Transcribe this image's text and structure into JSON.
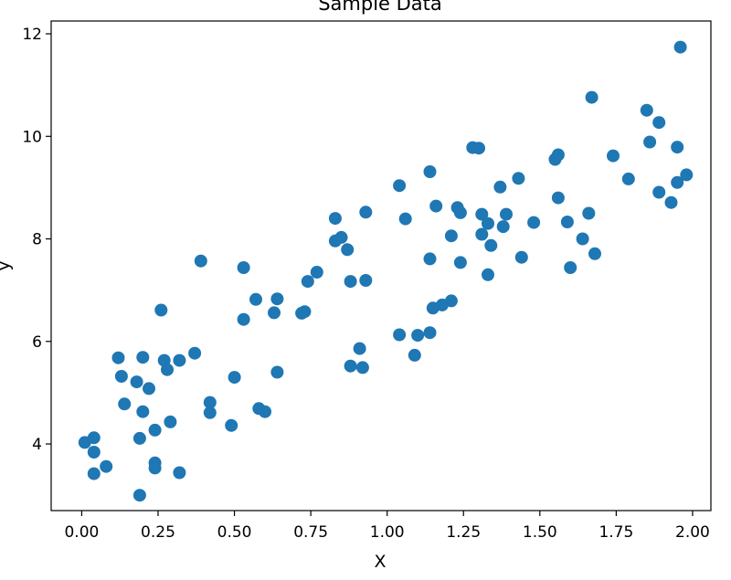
{
  "chart_data": {
    "type": "scatter",
    "title": "Sample Data",
    "xlabel": "X",
    "ylabel": "y",
    "xlim": [
      -0.1,
      2.06
    ],
    "ylim": [
      2.7,
      12.25
    ],
    "xticks": [
      0.0,
      0.25,
      0.5,
      0.75,
      1.0,
      1.25,
      1.5,
      1.75,
      2.0
    ],
    "xtick_labels": [
      "0.00",
      "0.25",
      "0.50",
      "0.75",
      "1.00",
      "1.25",
      "1.50",
      "1.75",
      "2.00"
    ],
    "yticks": [
      4,
      6,
      8,
      10,
      12
    ],
    "ytick_labels": [
      "4",
      "6",
      "8",
      "10",
      "12"
    ],
    "grid": false,
    "marker_color": "#1f77b4",
    "points": [
      [
        0.01,
        4.03
      ],
      [
        0.04,
        4.12
      ],
      [
        0.04,
        3.84
      ],
      [
        0.04,
        3.42
      ],
      [
        0.08,
        3.56
      ],
      [
        0.12,
        5.68
      ],
      [
        0.13,
        5.32
      ],
      [
        0.14,
        4.78
      ],
      [
        0.18,
        5.21
      ],
      [
        0.19,
        3.0
      ],
      [
        0.19,
        4.11
      ],
      [
        0.2,
        5.69
      ],
      [
        0.2,
        4.63
      ],
      [
        0.22,
        5.08
      ],
      [
        0.24,
        4.27
      ],
      [
        0.24,
        3.63
      ],
      [
        0.24,
        3.53
      ],
      [
        0.26,
        6.61
      ],
      [
        0.27,
        5.63
      ],
      [
        0.28,
        5.45
      ],
      [
        0.29,
        4.43
      ],
      [
        0.32,
        5.63
      ],
      [
        0.32,
        3.44
      ],
      [
        0.37,
        5.77
      ],
      [
        0.39,
        7.57
      ],
      [
        0.42,
        4.81
      ],
      [
        0.42,
        4.61
      ],
      [
        0.49,
        4.36
      ],
      [
        0.5,
        5.3
      ],
      [
        0.53,
        7.44
      ],
      [
        0.53,
        6.43
      ],
      [
        0.57,
        6.82
      ],
      [
        0.58,
        4.69
      ],
      [
        0.6,
        4.63
      ],
      [
        0.63,
        6.56
      ],
      [
        0.64,
        6.83
      ],
      [
        0.64,
        5.4
      ],
      [
        0.72,
        6.55
      ],
      [
        0.73,
        6.58
      ],
      [
        0.74,
        7.17
      ],
      [
        0.77,
        7.35
      ],
      [
        0.83,
        8.4
      ],
      [
        0.83,
        7.96
      ],
      [
        0.85,
        8.03
      ],
      [
        0.87,
        7.79
      ],
      [
        0.88,
        7.17
      ],
      [
        0.88,
        5.52
      ],
      [
        0.91,
        5.86
      ],
      [
        0.92,
        5.49
      ],
      [
        0.93,
        8.52
      ],
      [
        0.93,
        7.19
      ],
      [
        1.04,
        9.04
      ],
      [
        1.04,
        6.13
      ],
      [
        1.06,
        8.39
      ],
      [
        1.09,
        5.73
      ],
      [
        1.1,
        6.12
      ],
      [
        1.14,
        9.31
      ],
      [
        1.14,
        7.61
      ],
      [
        1.14,
        6.17
      ],
      [
        1.15,
        6.65
      ],
      [
        1.16,
        8.64
      ],
      [
        1.18,
        6.71
      ],
      [
        1.21,
        8.06
      ],
      [
        1.21,
        6.79
      ],
      [
        1.23,
        8.61
      ],
      [
        1.24,
        8.51
      ],
      [
        1.24,
        7.54
      ],
      [
        1.28,
        9.78
      ],
      [
        1.3,
        9.77
      ],
      [
        1.31,
        8.48
      ],
      [
        1.31,
        8.09
      ],
      [
        1.33,
        8.3
      ],
      [
        1.33,
        7.3
      ],
      [
        1.34,
        7.87
      ],
      [
        1.37,
        9.01
      ],
      [
        1.38,
        8.24
      ],
      [
        1.39,
        8.48
      ],
      [
        1.43,
        9.18
      ],
      [
        1.44,
        7.64
      ],
      [
        1.48,
        8.32
      ],
      [
        1.55,
        9.55
      ],
      [
        1.56,
        9.64
      ],
      [
        1.56,
        8.8
      ],
      [
        1.59,
        8.33
      ],
      [
        1.6,
        7.44
      ],
      [
        1.64,
        8.0
      ],
      [
        1.66,
        8.5
      ],
      [
        1.67,
        10.76
      ],
      [
        1.68,
        7.71
      ],
      [
        1.74,
        9.62
      ],
      [
        1.79,
        9.17
      ],
      [
        1.85,
        10.51
      ],
      [
        1.86,
        9.89
      ],
      [
        1.89,
        10.27
      ],
      [
        1.89,
        8.91
      ],
      [
        1.93,
        8.71
      ],
      [
        1.95,
        9.79
      ],
      [
        1.95,
        9.1
      ],
      [
        1.96,
        11.74
      ],
      [
        1.98,
        9.25
      ]
    ]
  }
}
